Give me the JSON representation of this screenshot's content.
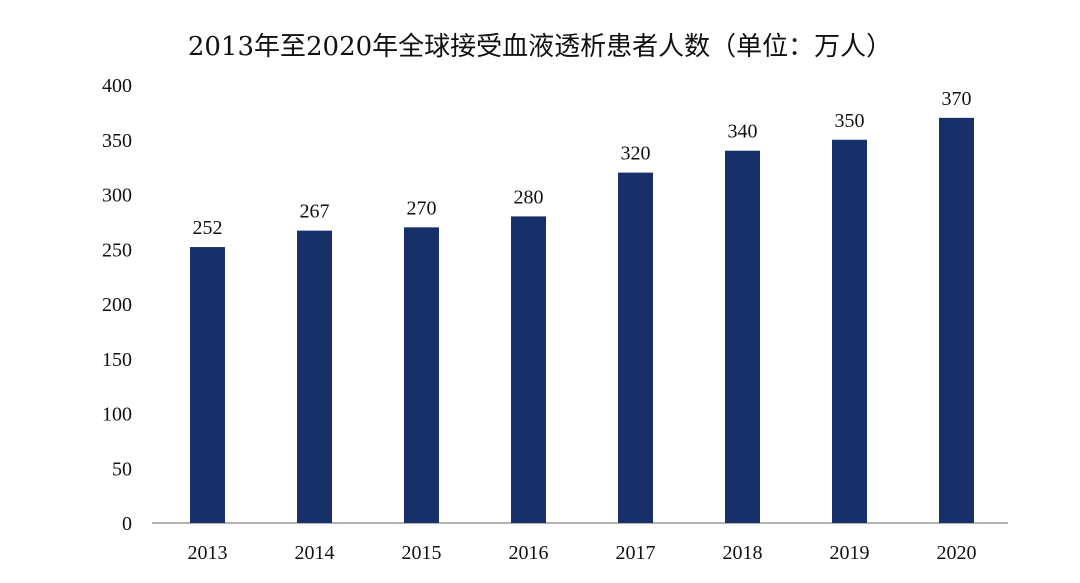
{
  "chart_data": {
    "type": "bar",
    "title": "2013年至2020年全球接受血液透析患者人数（单位：万人）",
    "xlabel": "",
    "ylabel": "",
    "categories": [
      "2013",
      "2014",
      "2015",
      "2016",
      "2017",
      "2018",
      "2019",
      "2020"
    ],
    "values": [
      252,
      267,
      270,
      280,
      320,
      340,
      350,
      370
    ],
    "data_labels": [
      "252",
      "267",
      "270",
      "280",
      "320",
      "340",
      "350",
      "370"
    ],
    "yticks": [
      0,
      50,
      100,
      150,
      200,
      250,
      300,
      350,
      400
    ],
    "ylim": [
      0,
      400
    ],
    "grid": false,
    "legend": "none",
    "bar_color": "#17306a"
  }
}
